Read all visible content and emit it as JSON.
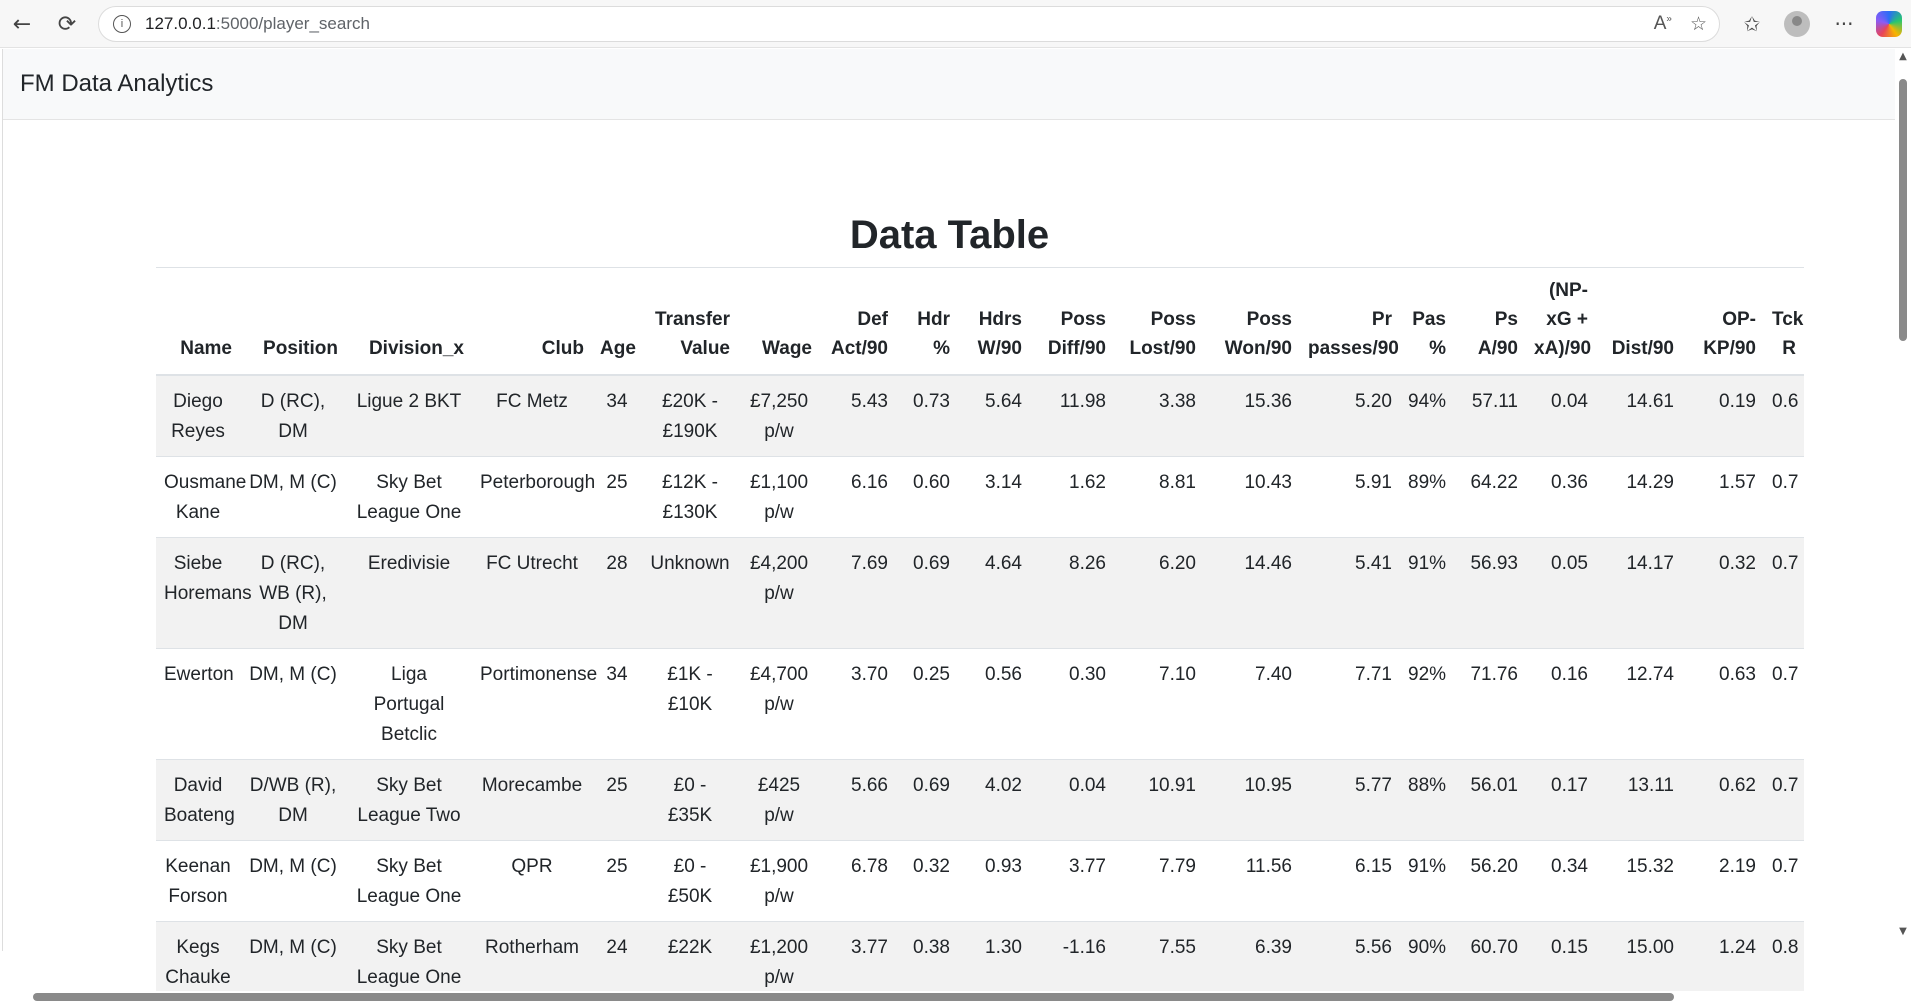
{
  "browser": {
    "url_host": "127.0.0.1",
    "url_path": ":5000/player_search",
    "icons": [
      "back-icon",
      "reload-icon",
      "info-icon",
      "read-aloud-icon",
      "favorite-icon",
      "favorites-list-icon",
      "profile-icon",
      "more-icon",
      "copilot-icon"
    ]
  },
  "navbar": {
    "brand": "FM Data Analytics"
  },
  "page": {
    "title": "Data Table"
  },
  "table": {
    "headers": [
      "Name",
      "Position",
      "Division_x",
      "Club",
      "Age",
      "Transfer Value",
      "Wage",
      "Def Act/90",
      "Hdr %",
      "Hdrs W/90",
      "Poss Diff/90",
      "Poss Lost/90",
      "Poss Won/90",
      "Pr passes/90",
      "Pas %",
      "Ps A/90",
      "(NP-xG + xA)/90",
      "Dist/90",
      "OP-KP/90",
      "Tck R"
    ],
    "rows": [
      [
        "Diego Reyes",
        "D (RC), DM",
        "Ligue 2 BKT",
        "FC Metz",
        "34",
        "£20K - £190K",
        "£7,250 p/w",
        "5.43",
        "0.73",
        "5.64",
        "11.98",
        "3.38",
        "15.36",
        "5.20",
        "94%",
        "57.11",
        "0.04",
        "14.61",
        "0.19",
        "0.6"
      ],
      [
        "Ousmane Kane",
        "DM, M (C)",
        "Sky Bet League One",
        "Peterborough",
        "25",
        "£12K - £130K",
        "£1,100 p/w",
        "6.16",
        "0.60",
        "3.14",
        "1.62",
        "8.81",
        "10.43",
        "5.91",
        "89%",
        "64.22",
        "0.36",
        "14.29",
        "1.57",
        "0.7"
      ],
      [
        "Siebe Horemans",
        "D (RC), WB (R), DM",
        "Eredivisie",
        "FC Utrecht",
        "28",
        "Unknown",
        "£4,200 p/w",
        "7.69",
        "0.69",
        "4.64",
        "8.26",
        "6.20",
        "14.46",
        "5.41",
        "91%",
        "56.93",
        "0.05",
        "14.17",
        "0.32",
        "0.7"
      ],
      [
        "Ewerton",
        "DM, M (C)",
        "Liga Portugal Betclic",
        "Portimonense",
        "34",
        "£1K - £10K",
        "£4,700 p/w",
        "3.70",
        "0.25",
        "0.56",
        "0.30",
        "7.10",
        "7.40",
        "7.71",
        "92%",
        "71.76",
        "0.16",
        "12.74",
        "0.63",
        "0.7"
      ],
      [
        "David Boateng",
        "D/WB (R), DM",
        "Sky Bet League Two",
        "Morecambe",
        "25",
        "£0 - £35K",
        "£425 p/w",
        "5.66",
        "0.69",
        "4.02",
        "0.04",
        "10.91",
        "10.95",
        "5.77",
        "88%",
        "56.01",
        "0.17",
        "13.11",
        "0.62",
        "0.7"
      ],
      [
        "Keenan Forson",
        "DM, M (C)",
        "Sky Bet League One",
        "QPR",
        "25",
        "£0 - £50K",
        "£1,900 p/w",
        "6.78",
        "0.32",
        "0.93",
        "3.77",
        "7.79",
        "11.56",
        "6.15",
        "91%",
        "56.20",
        "0.34",
        "15.32",
        "2.19",
        "0.7"
      ],
      [
        "Kegs Chauke",
        "DM, M (C)",
        "Sky Bet League One",
        "Rotherham",
        "24",
        "£22K",
        "£1,200 p/w",
        "3.77",
        "0.38",
        "1.30",
        "-1.16",
        "7.55",
        "6.39",
        "5.56",
        "90%",
        "60.70",
        "0.15",
        "15.00",
        "1.24",
        "0.8"
      ]
    ]
  }
}
